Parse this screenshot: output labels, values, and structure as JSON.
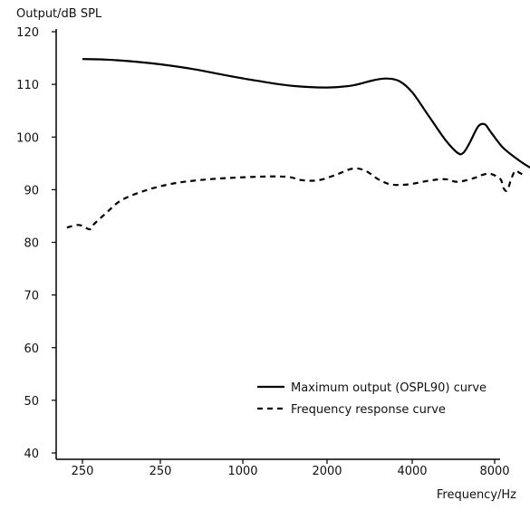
{
  "chart_data": {
    "type": "line",
    "ylabel": "Output/dB SPL",
    "xlabel": "Frequency/Hz",
    "ylim": [
      40,
      120
    ],
    "y_ticks": [
      "120",
      "110",
      "100",
      "90",
      "80",
      "70",
      "60",
      "50",
      "40"
    ],
    "x_ticks": [
      "250",
      "250",
      "1000",
      "2000",
      "4000",
      "8000"
    ],
    "x_ticks_note": "category positions along a log-style frequency axis; index 0..5",
    "grid": false,
    "legend_placement": "bottom-right",
    "series": [
      {
        "name": "Maximum output (OSPL90) curve",
        "style": "solid",
        "color": "#000000",
        "points": [
          [
            0.0,
            114.8
          ],
          [
            0.3,
            114.7
          ],
          [
            0.6,
            114.4
          ],
          [
            1.0,
            113.8
          ],
          [
            1.4,
            112.9
          ],
          [
            1.8,
            111.7
          ],
          [
            2.2,
            110.6
          ],
          [
            2.6,
            109.7
          ],
          [
            3.0,
            109.4
          ],
          [
            3.3,
            109.8
          ],
          [
            3.55,
            110.8
          ],
          [
            3.7,
            111.1
          ],
          [
            3.85,
            110.6
          ],
          [
            4.0,
            108.5
          ],
          [
            4.2,
            104.0
          ],
          [
            4.4,
            99.5
          ],
          [
            4.55,
            97.0
          ],
          [
            4.62,
            97.0
          ],
          [
            4.7,
            99.0
          ],
          [
            4.8,
            102.0
          ],
          [
            4.88,
            102.4
          ],
          [
            4.95,
            101.0
          ],
          [
            5.1,
            98.0
          ],
          [
            5.3,
            95.5
          ],
          [
            5.45,
            94.0
          ]
        ]
      },
      {
        "name": "Frequency response curve",
        "style": "dashed",
        "color": "#000000",
        "points": [
          [
            -0.2,
            82.8
          ],
          [
            -0.05,
            83.3
          ],
          [
            0.05,
            82.7
          ],
          [
            0.1,
            82.5
          ],
          [
            0.15,
            83.5
          ],
          [
            0.3,
            85.5
          ],
          [
            0.5,
            88.0
          ],
          [
            0.8,
            89.8
          ],
          [
            1.1,
            91.0
          ],
          [
            1.4,
            91.7
          ],
          [
            1.8,
            92.2
          ],
          [
            2.3,
            92.5
          ],
          [
            2.55,
            92.4
          ],
          [
            2.7,
            91.8
          ],
          [
            2.9,
            91.8
          ],
          [
            3.1,
            92.8
          ],
          [
            3.3,
            94.0
          ],
          [
            3.45,
            93.6
          ],
          [
            3.6,
            92.0
          ],
          [
            3.75,
            91.0
          ],
          [
            3.95,
            91.0
          ],
          [
            4.2,
            91.7
          ],
          [
            4.4,
            92.0
          ],
          [
            4.55,
            91.5
          ],
          [
            4.75,
            92.2
          ],
          [
            4.85,
            92.8
          ],
          [
            4.95,
            93.0
          ],
          [
            5.07,
            92.0
          ],
          [
            5.1,
            90.5
          ],
          [
            5.15,
            89.8
          ],
          [
            5.2,
            92.0
          ],
          [
            5.25,
            93.6
          ],
          [
            5.3,
            93.2
          ],
          [
            5.35,
            92.8
          ]
        ]
      }
    ]
  }
}
